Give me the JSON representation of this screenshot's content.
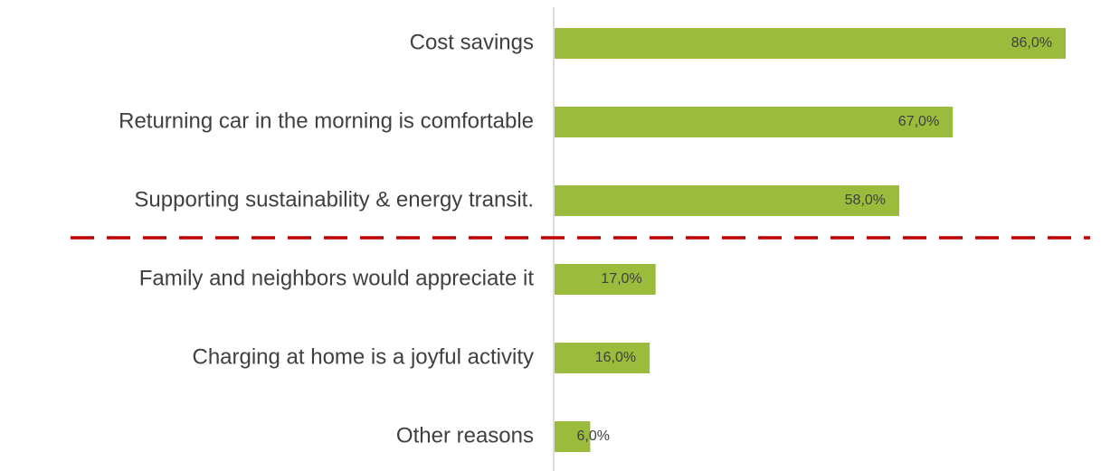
{
  "chart_data": {
    "type": "bar",
    "orientation": "horizontal",
    "categories": [
      "Cost savings",
      "Returning car in the morning is comfortable",
      "Supporting sustainability & energy transit.",
      "Family and neighbors would appreciate it",
      "Charging at home is a joyful activity",
      "Other reasons"
    ],
    "values": [
      86,
      67,
      58,
      17,
      16,
      6
    ],
    "value_labels": [
      "86,0%",
      "67,0%",
      "58,0%",
      "17,0%",
      "16,0%",
      "6,0%"
    ],
    "color": "#9bbb3c"
  }
}
